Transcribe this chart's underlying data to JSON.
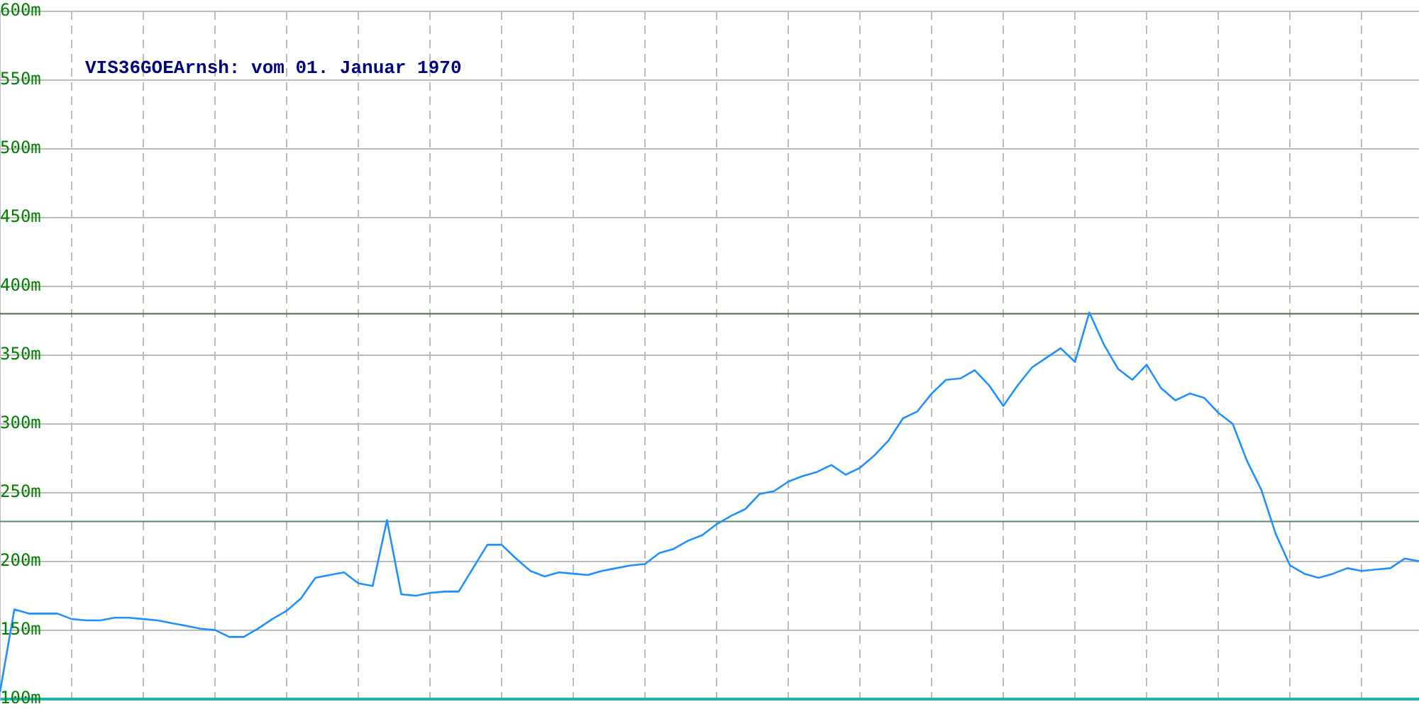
{
  "chart_data": {
    "type": "line",
    "title": "VIS36GOEArnsh: vom 01. Januar 1970",
    "categories": [
      null,
      null,
      null,
      null,
      null,
      null,
      null,
      null,
      null,
      null,
      null,
      null,
      null,
      null,
      null,
      null,
      null,
      null,
      null,
      null,
      null,
      null,
      null,
      null,
      null,
      null,
      null,
      null,
      null,
      null,
      null,
      null,
      null,
      null,
      null,
      null,
      null,
      null,
      null,
      null,
      null,
      null,
      null,
      null,
      null,
      null,
      null,
      null,
      null,
      null,
      null,
      null,
      null,
      null,
      null,
      null,
      null,
      null,
      null,
      null,
      null,
      null,
      null,
      null,
      null,
      null,
      null,
      null,
      null,
      null,
      null,
      null,
      null,
      null,
      null,
      null,
      null,
      null,
      null,
      null,
      null,
      null,
      null,
      null,
      null,
      null,
      null,
      null,
      null,
      null,
      null,
      null,
      null,
      null,
      null,
      null,
      null,
      null,
      null,
      null
    ],
    "series": [
      {
        "color": "#1e90ff",
        "values": [
          105,
          165,
          162,
          162,
          162,
          158,
          157,
          157,
          159,
          159,
          158,
          157,
          155,
          153,
          151,
          150,
          145,
          145,
          151,
          158,
          164,
          173,
          188,
          190,
          192,
          184,
          182,
          230,
          176,
          175,
          177,
          178,
          178,
          195,
          212,
          212,
          202,
          193,
          189,
          192,
          191,
          190,
          193,
          195,
          197,
          198,
          206,
          209,
          215,
          219,
          227,
          233,
          238,
          249,
          251,
          258,
          262,
          265,
          270,
          263,
          268,
          277,
          288,
          304,
          309,
          322,
          332,
          333,
          339,
          328,
          313,
          328,
          341,
          348,
          355,
          345,
          381,
          358,
          340,
          332,
          343,
          326,
          317,
          322,
          319,
          308,
          300,
          273,
          252,
          220,
          197,
          191,
          188,
          191,
          195,
          193,
          194,
          195,
          202,
          200
        ]
      }
    ],
    "ylim": [
      100,
      600
    ],
    "yticks": [
      {
        "value": 100,
        "label": "100m"
      },
      {
        "value": 150,
        "label": "150m"
      },
      {
        "value": 200,
        "label": "200m"
      },
      {
        "value": 250,
        "label": "250m"
      },
      {
        "value": 300,
        "label": "300m"
      },
      {
        "value": 350,
        "label": "350m"
      },
      {
        "value": 400,
        "label": "400m"
      },
      {
        "value": 450,
        "label": "450m"
      },
      {
        "value": 500,
        "label": "500m"
      },
      {
        "value": 550,
        "label": "550m"
      },
      {
        "value": 600,
        "label": "600m"
      }
    ],
    "ref_lines": [
      {
        "axis": "y",
        "value": 380,
        "color": "#4a6e4a"
      },
      {
        "axis": "y",
        "value": 229,
        "color": "#5a8a6a"
      }
    ],
    "grid": true,
    "legend": false,
    "marker": "none",
    "line_style": "solid",
    "tick_labels": "y"
  }
}
